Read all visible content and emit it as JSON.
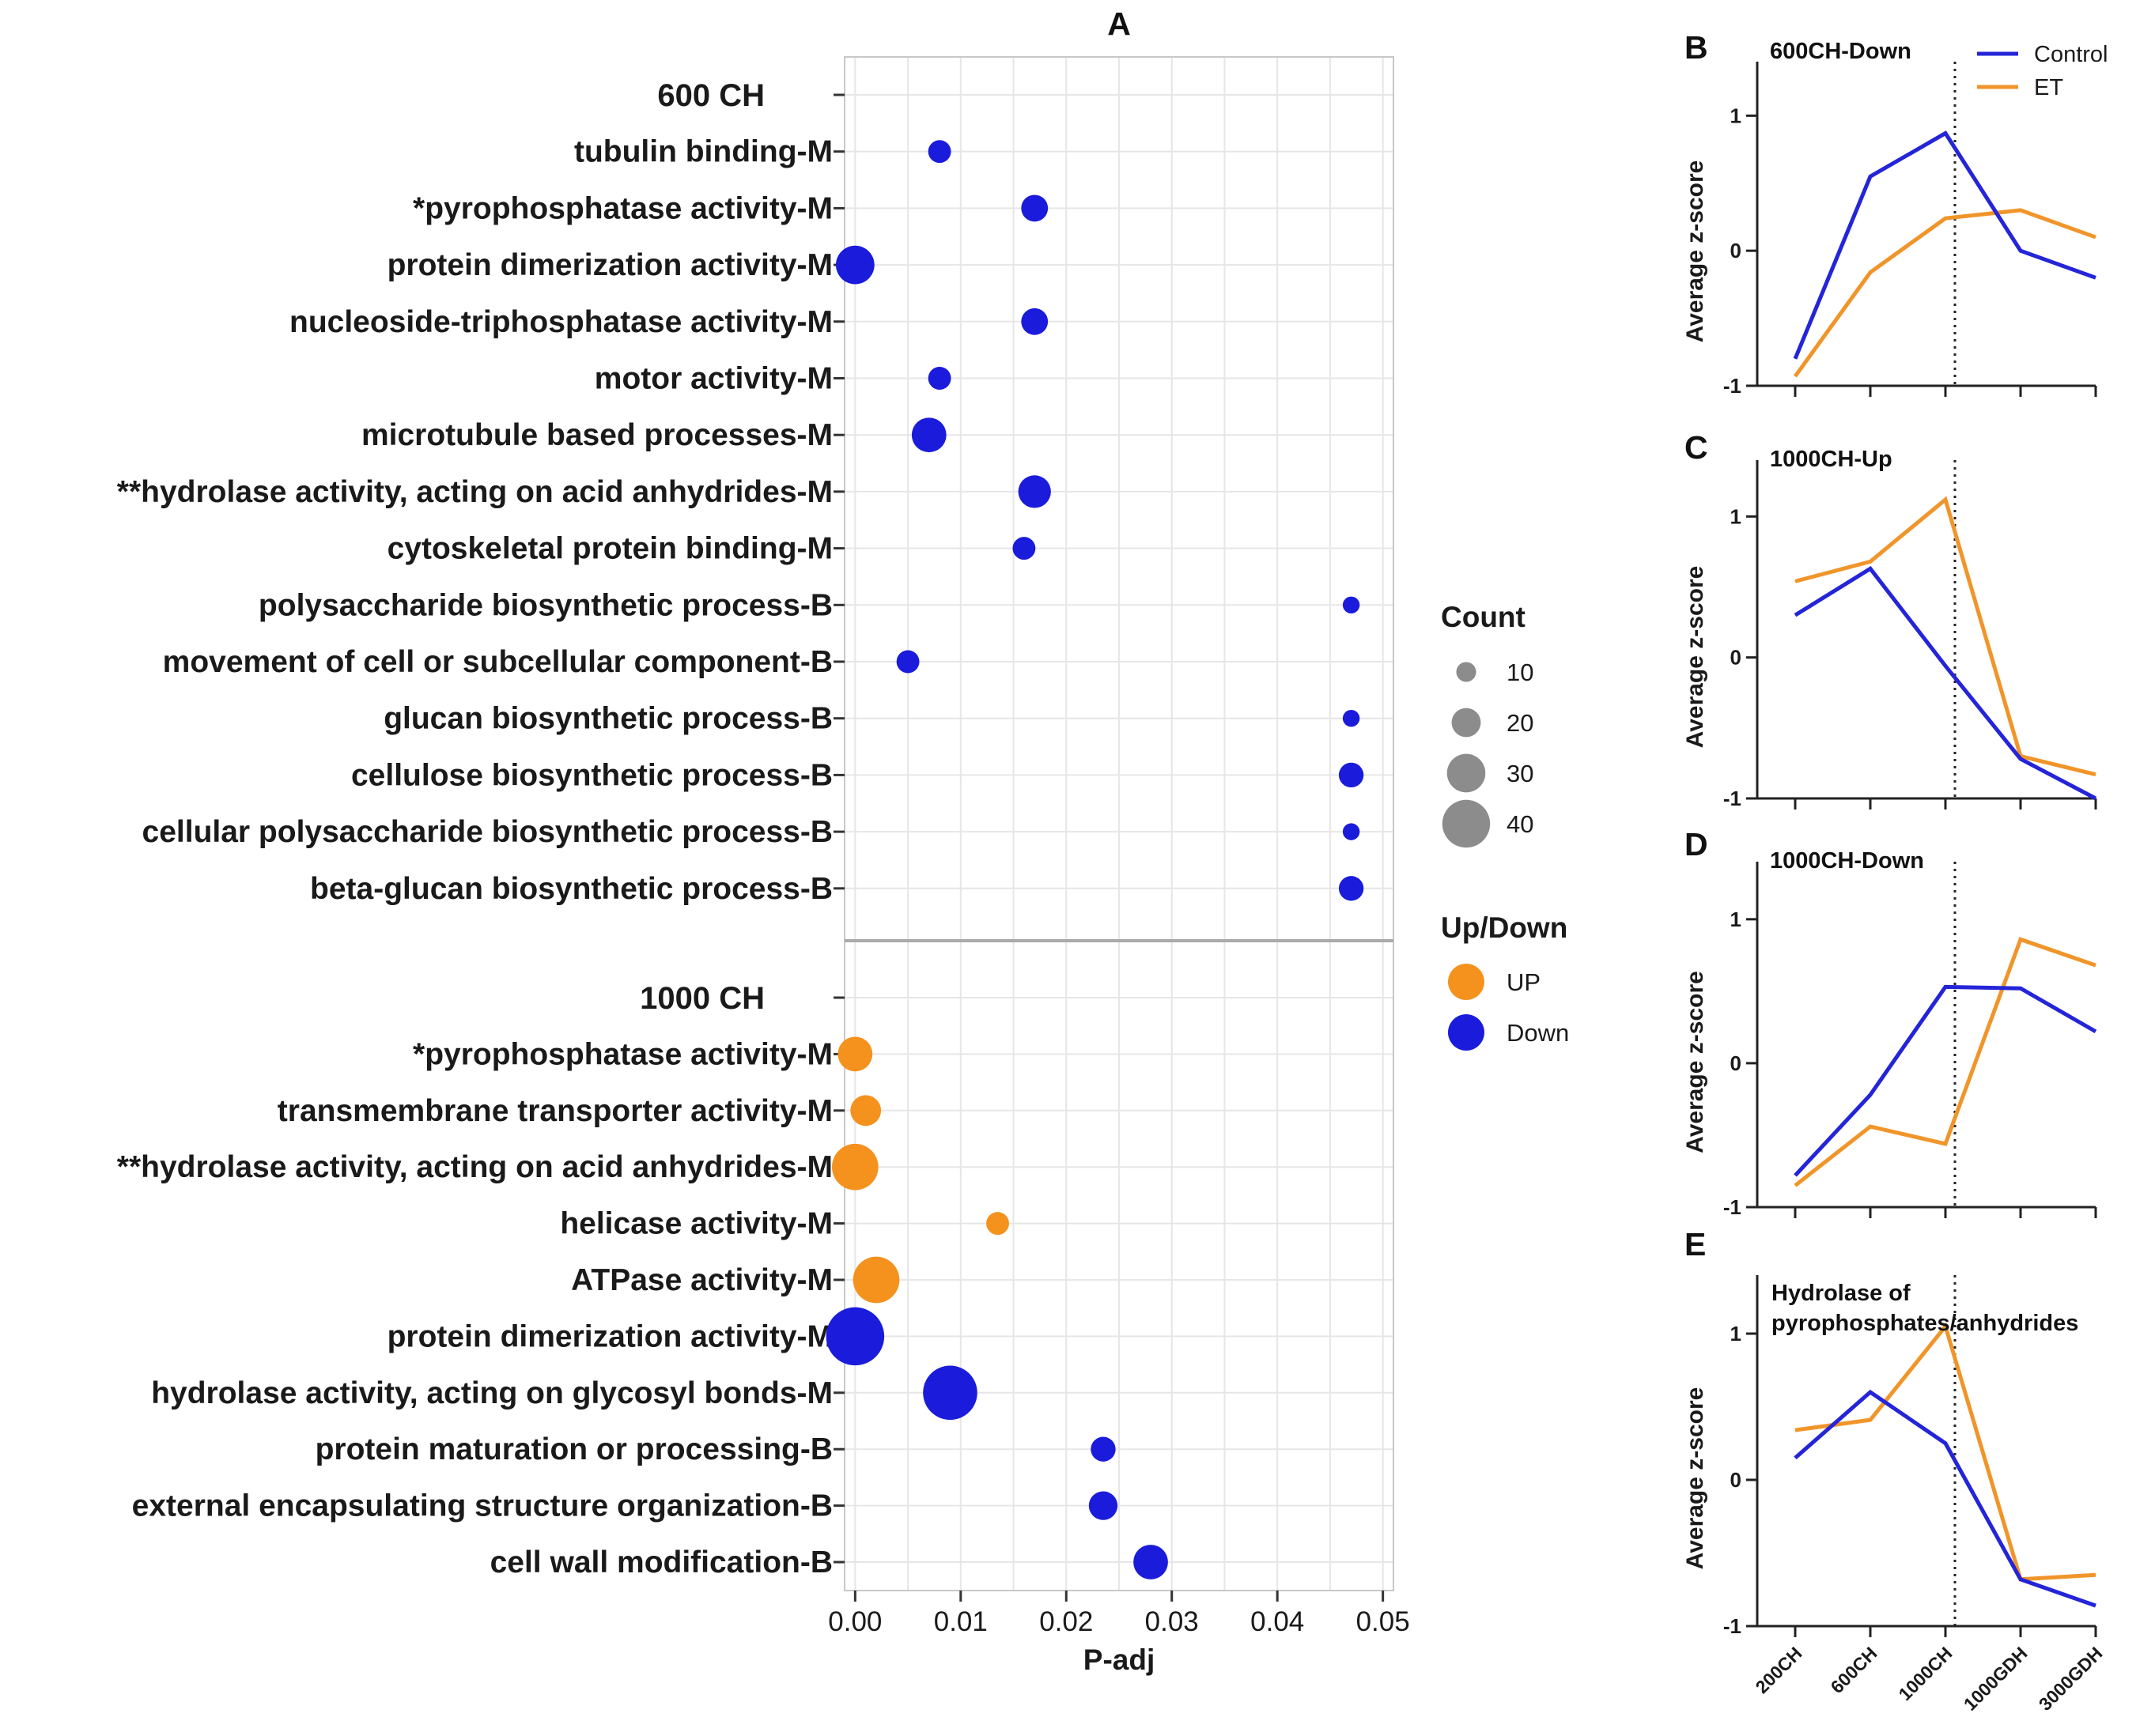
{
  "chart_data": [
    {
      "type": "scatter",
      "panel": "A",
      "xlabel": "P-adj",
      "xlim": [
        -0.001,
        0.051
      ],
      "xticks": [
        "0.00",
        "0.01",
        "0.02",
        "0.03",
        "0.04",
        "0.05"
      ],
      "xtick_values": [
        0,
        0.01,
        0.02,
        0.03,
        0.04,
        0.05
      ],
      "colors": {
        "UP": "#f5921e",
        "Down": "#1b1bdc",
        "grid": "#e6e6e6",
        "sep": "#aaaaaa"
      },
      "groups": [
        {
          "label": "600 CH",
          "terms": [
            {
              "name": "tubulin binding-M",
              "p": 0.008,
              "count": 12,
              "dir": "Down"
            },
            {
              "name": "*pyrophosphatase  activity-M",
              "p": 0.017,
              "count": 16,
              "dir": "Down"
            },
            {
              "name": "protein dimerization  activity-M",
              "p": 0.0,
              "count": 28,
              "dir": "Down"
            },
            {
              "name": "nucleoside-triphosphatase activity-M",
              "p": 0.017,
              "count": 16,
              "dir": "Down"
            },
            {
              "name": "motor activity-M",
              "p": 0.008,
              "count": 12,
              "dir": "Down"
            },
            {
              "name": "microtubule based processes-M",
              "p": 0.007,
              "count": 24,
              "dir": "Down"
            },
            {
              "name": "**hydrolase activity,  acting on acid anhydrides-M",
              "p": 0.017,
              "count": 22,
              "dir": "Down"
            },
            {
              "name": "cytoskeletal protein binding-M",
              "p": 0.016,
              "count": 12,
              "dir": "Down"
            },
            {
              "name": "polysaccharide biosynthetic process-B",
              "p": 0.047,
              "count": 6,
              "dir": "Down"
            },
            {
              "name": "movement of cell or subcellular component-B",
              "p": 0.005,
              "count": 12,
              "dir": "Down"
            },
            {
              "name": "glucan biosynthetic process-B",
              "p": 0.047,
              "count": 6,
              "dir": "Down"
            },
            {
              "name": "cellulose biosynthetic process-B",
              "p": 0.047,
              "count": 14,
              "dir": "Down"
            },
            {
              "name": "cellular polysaccharide biosynthetic process-B",
              "p": 0.047,
              "count": 6,
              "dir": "Down"
            },
            {
              "name": "beta-glucan biosynthetic process-B",
              "p": 0.047,
              "count": 14,
              "dir": "Down"
            }
          ]
        },
        {
          "label": "1000 CH",
          "terms": [
            {
              "name": "*pyrophosphatase activity-M",
              "p": 0.0,
              "count": 24,
              "dir": "UP"
            },
            {
              "name": "transmembrane transporter activity-M",
              "p": 0.001,
              "count": 20,
              "dir": "UP"
            },
            {
              "name": "**hydrolase activity, acting on acid anhydrides-M",
              "p": 0.0,
              "count": 36,
              "dir": "UP"
            },
            {
              "name": "helicase activity-M",
              "p": 0.0135,
              "count": 12,
              "dir": "UP"
            },
            {
              "name": "ATPase activity-M",
              "p": 0.002,
              "count": 36,
              "dir": "UP"
            },
            {
              "name": "protein dimerization activity-M",
              "p": 0.0,
              "count": 48,
              "dir": "Down"
            },
            {
              "name": "hydrolase activity, acting on glycosyl bonds-M",
              "p": 0.009,
              "count": 44,
              "dir": "Down"
            },
            {
              "name": "protein maturation or processing-B",
              "p": 0.0235,
              "count": 14,
              "dir": "Down"
            },
            {
              "name": "external encapsulating structure organization-B",
              "p": 0.0235,
              "count": 18,
              "dir": "Down"
            },
            {
              "name": "cell wall modification-B",
              "p": 0.028,
              "count": 24,
              "dir": "Down"
            }
          ]
        }
      ],
      "legend_count": {
        "title": "Count",
        "values": [
          10,
          20,
          30,
          40
        ],
        "labels": [
          "10",
          "20",
          "30",
          "40"
        ]
      },
      "legend_dir": {
        "title": "Up/Down",
        "labels": [
          "UP",
          "Down"
        ]
      }
    },
    {
      "type": "line",
      "panel": "B",
      "title": "600CH-Down",
      "ylabel": "Average z-score",
      "categories": [
        "200CH",
        "600CH",
        "1000CH",
        "1000GDH",
        "3000GDH"
      ],
      "ylim": [
        -1,
        1.4
      ],
      "yticks": [
        "1",
        "0",
        "-1"
      ],
      "ytick_values": [
        1,
        0,
        -1
      ],
      "series": [
        {
          "name": "Control",
          "color": "#2424d8",
          "values": [
            -0.8,
            0.55,
            0.87,
            0.0,
            -0.2
          ]
        },
        {
          "name": "ET",
          "color": "#f0952a",
          "values": [
            -0.93,
            -0.16,
            0.24,
            0.3,
            0.1
          ]
        }
      ],
      "legend": [
        "Control",
        "ET"
      ]
    },
    {
      "type": "line",
      "panel": "C",
      "title": "1000CH-Up",
      "ylabel": "Average z-score",
      "categories": [
        "200CH",
        "600CH",
        "1000CH",
        "1000GDH",
        "3000GDH"
      ],
      "ylim": [
        -1,
        1.4
      ],
      "yticks": [
        "1",
        "0",
        "-1"
      ],
      "ytick_values": [
        1,
        0,
        -1
      ],
      "series": [
        {
          "name": "Control",
          "color": "#2424d8",
          "values": [
            0.3,
            0.63,
            -0.06,
            -0.72,
            -1.0
          ]
        },
        {
          "name": "ET",
          "color": "#f0952a",
          "values": [
            0.54,
            0.68,
            1.12,
            -0.7,
            -0.83
          ]
        }
      ]
    },
    {
      "type": "line",
      "panel": "D",
      "title": "1000CH-Down",
      "ylabel": "Average z-score",
      "categories": [
        "200CH",
        "600CH",
        "1000CH",
        "1000GDH",
        "3000GDH"
      ],
      "ylim": [
        -1,
        1.4
      ],
      "yticks": [
        "1",
        "0",
        "-1"
      ],
      "ytick_values": [
        1,
        0,
        -1
      ],
      "series": [
        {
          "name": "Control",
          "color": "#2424d8",
          "values": [
            -0.78,
            -0.22,
            0.53,
            0.52,
            0.22
          ]
        },
        {
          "name": "ET",
          "color": "#f0952a",
          "values": [
            -0.85,
            -0.44,
            -0.56,
            0.86,
            0.68
          ]
        }
      ]
    },
    {
      "type": "line",
      "panel": "E",
      "title": "Hydrolase of pyrophosphates/anhydrides",
      "title_lines": [
        "Hydrolase of",
        "pyrophosphates/anhydrides"
      ],
      "ylabel": "Average z-score",
      "categories": [
        "200CH",
        "600CH",
        "1000CH",
        "1000GDH",
        "3000GDH"
      ],
      "ylim": [
        -1,
        1.4
      ],
      "yticks": [
        "1",
        "0",
        "-1"
      ],
      "ytick_values": [
        1,
        0,
        -1
      ],
      "series": [
        {
          "name": "Control",
          "color": "#2424d8",
          "values": [
            0.15,
            0.6,
            0.25,
            -0.68,
            -0.86
          ]
        },
        {
          "name": "ET",
          "color": "#f0952a",
          "values": [
            0.34,
            0.41,
            1.05,
            -0.68,
            -0.65
          ]
        }
      ]
    }
  ]
}
